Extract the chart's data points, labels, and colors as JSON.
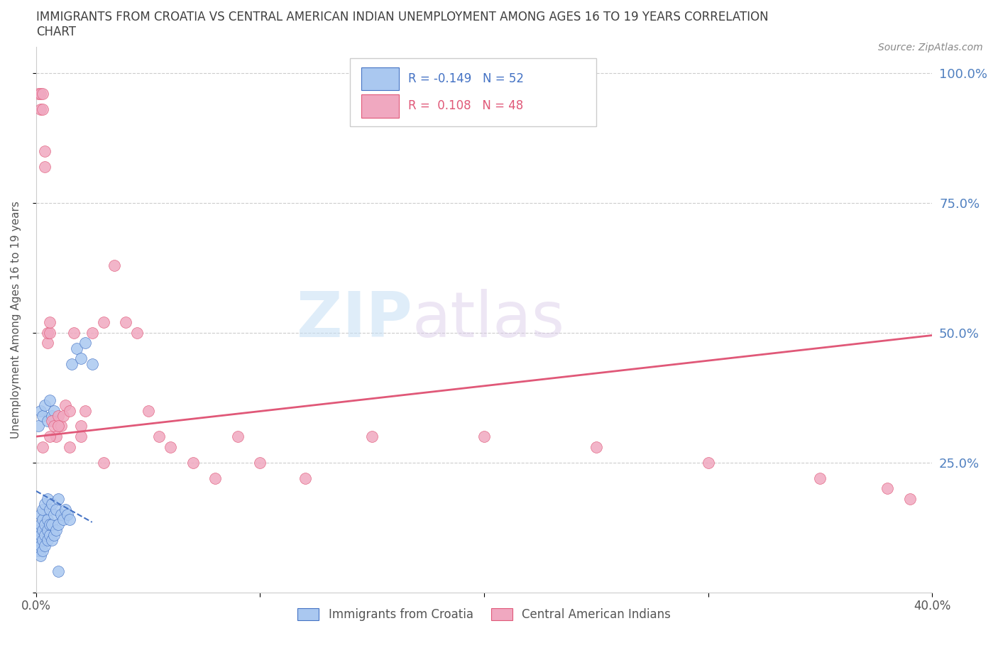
{
  "title": "IMMIGRANTS FROM CROATIA VS CENTRAL AMERICAN INDIAN UNEMPLOYMENT AMONG AGES 16 TO 19 YEARS CORRELATION\nCHART",
  "source": "Source: ZipAtlas.com",
  "ylabel": "Unemployment Among Ages 16 to 19 years",
  "xlim": [
    0.0,
    0.4
  ],
  "ylim": [
    0.0,
    1.05
  ],
  "yticks": [
    0.0,
    0.25,
    0.5,
    0.75,
    1.0
  ],
  "ytick_labels": [
    "",
    "25.0%",
    "50.0%",
    "75.0%",
    "100.0%"
  ],
  "xticks": [
    0.0,
    0.1,
    0.2,
    0.3,
    0.4
  ],
  "xtick_labels": [
    "0.0%",
    "",
    "",
    "",
    "40.0%"
  ],
  "watermark_zip": "ZIP",
  "watermark_atlas": "atlas",
  "legend_r1": "R = -0.149",
  "legend_n1": "N = 52",
  "legend_r2": "R =  0.108",
  "legend_n2": "N = 48",
  "series1_label": "Immigrants from Croatia",
  "series2_label": "Central American Indians",
  "color1": "#aac8f0",
  "color2": "#f0a8c0",
  "trendline1_color": "#4472c4",
  "trendline2_color": "#e05878",
  "grid_color": "#cccccc",
  "title_color": "#404040",
  "axis_label_color": "#555555",
  "tick_color_right": "#5080c0",
  "background_color": "#ffffff",
  "series1_x": [
    0.001,
    0.001,
    0.001,
    0.002,
    0.002,
    0.002,
    0.002,
    0.002,
    0.003,
    0.003,
    0.003,
    0.003,
    0.003,
    0.004,
    0.004,
    0.004,
    0.004,
    0.005,
    0.005,
    0.005,
    0.005,
    0.006,
    0.006,
    0.006,
    0.007,
    0.007,
    0.007,
    0.008,
    0.008,
    0.009,
    0.009,
    0.01,
    0.01,
    0.011,
    0.012,
    0.013,
    0.014,
    0.015,
    0.016,
    0.018,
    0.02,
    0.022,
    0.025,
    0.001,
    0.002,
    0.003,
    0.004,
    0.005,
    0.006,
    0.007,
    0.008,
    0.01
  ],
  "series1_y": [
    0.08,
    0.1,
    0.12,
    0.07,
    0.09,
    0.11,
    0.13,
    0.15,
    0.08,
    0.1,
    0.12,
    0.14,
    0.16,
    0.09,
    0.11,
    0.13,
    0.17,
    0.1,
    0.12,
    0.14,
    0.18,
    0.11,
    0.13,
    0.16,
    0.1,
    0.13,
    0.17,
    0.11,
    0.15,
    0.12,
    0.16,
    0.13,
    0.18,
    0.15,
    0.14,
    0.16,
    0.15,
    0.14,
    0.44,
    0.47,
    0.45,
    0.48,
    0.44,
    0.32,
    0.35,
    0.34,
    0.36,
    0.33,
    0.37,
    0.34,
    0.35,
    0.04
  ],
  "series2_x": [
    0.001,
    0.002,
    0.002,
    0.003,
    0.003,
    0.004,
    0.004,
    0.005,
    0.005,
    0.006,
    0.006,
    0.007,
    0.008,
    0.009,
    0.01,
    0.011,
    0.012,
    0.013,
    0.015,
    0.017,
    0.02,
    0.022,
    0.025,
    0.03,
    0.035,
    0.04,
    0.045,
    0.05,
    0.055,
    0.06,
    0.07,
    0.08,
    0.09,
    0.1,
    0.12,
    0.15,
    0.2,
    0.25,
    0.3,
    0.35,
    0.38,
    0.39,
    0.003,
    0.006,
    0.01,
    0.015,
    0.02,
    0.03
  ],
  "series2_y": [
    0.96,
    0.93,
    0.96,
    0.96,
    0.93,
    0.85,
    0.82,
    0.48,
    0.5,
    0.5,
    0.52,
    0.33,
    0.32,
    0.3,
    0.34,
    0.32,
    0.34,
    0.36,
    0.35,
    0.5,
    0.32,
    0.35,
    0.5,
    0.52,
    0.63,
    0.52,
    0.5,
    0.35,
    0.3,
    0.28,
    0.25,
    0.22,
    0.3,
    0.25,
    0.22,
    0.3,
    0.3,
    0.28,
    0.25,
    0.22,
    0.2,
    0.18,
    0.28,
    0.3,
    0.32,
    0.28,
    0.3,
    0.25
  ],
  "trendline2_x0": 0.0,
  "trendline2_y0": 0.3,
  "trendline2_x1": 0.4,
  "trendline2_y1": 0.495,
  "trendline1_x0": 0.0,
  "trendline1_y0": 0.195,
  "trendline1_x1": 0.025,
  "trendline1_y1": 0.135
}
